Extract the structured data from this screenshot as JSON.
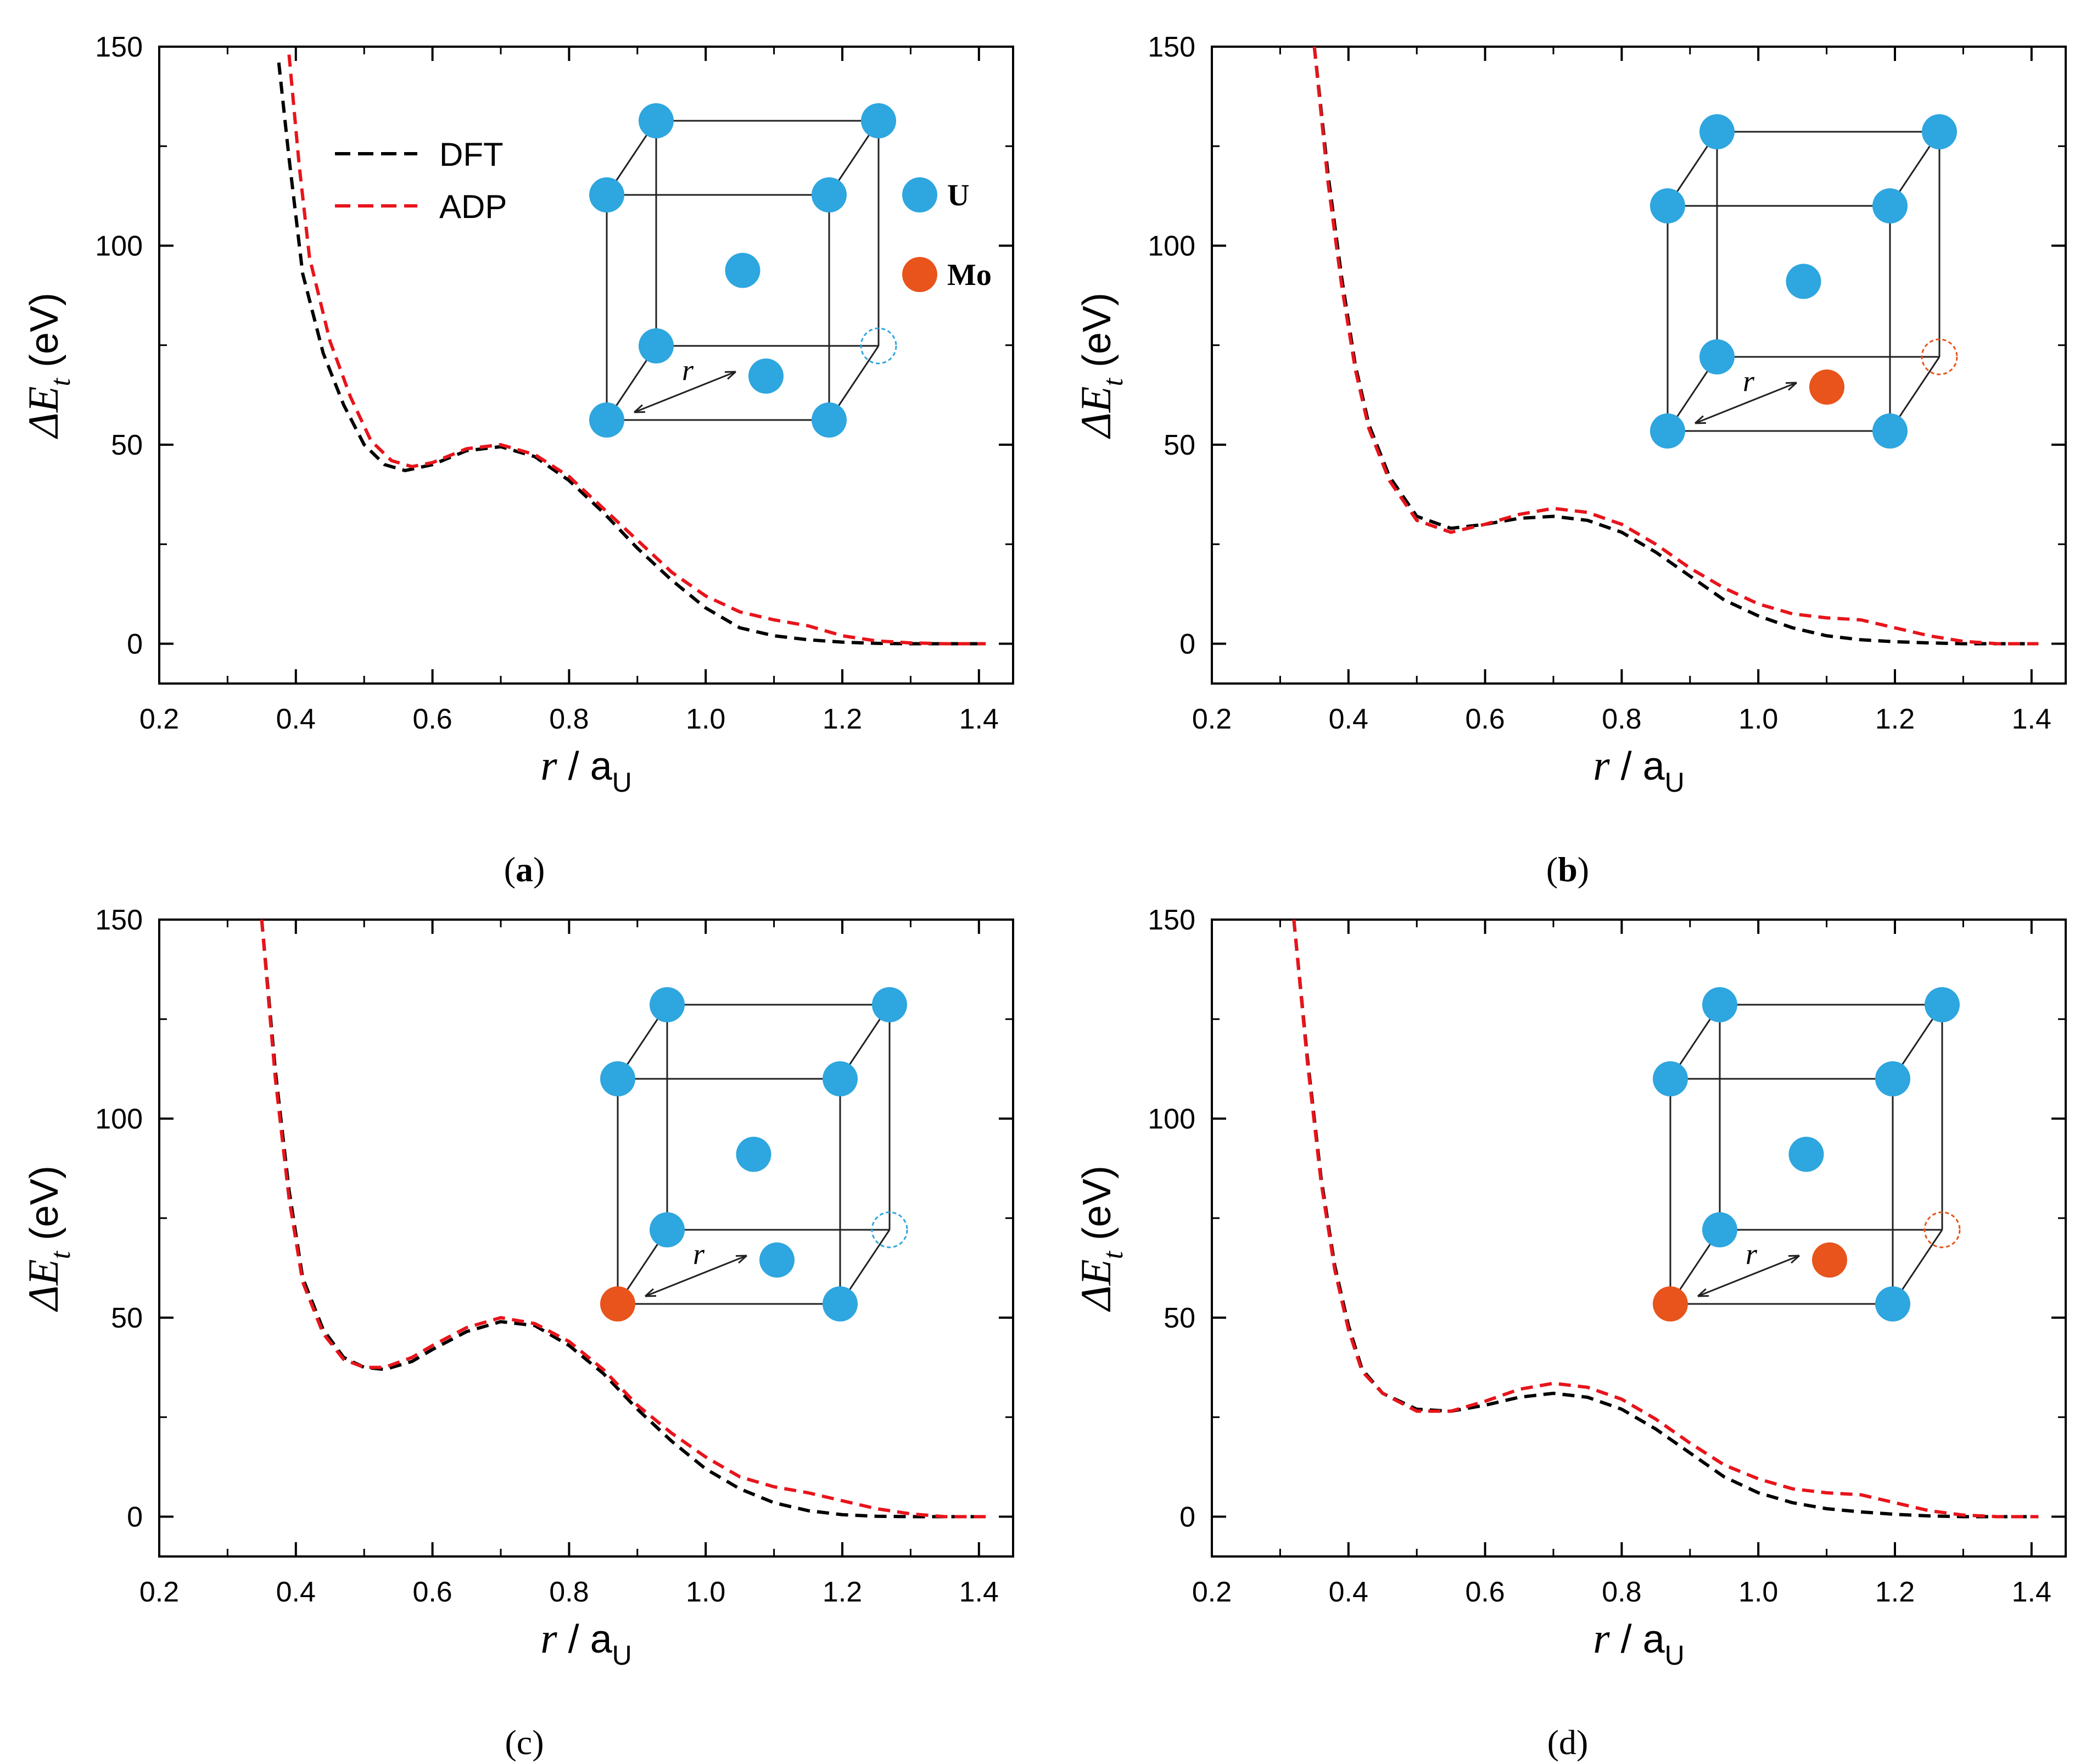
{
  "colors": {
    "U": "#2ea6df",
    "Mo": "#e8541b",
    "dft": "#000000",
    "adp": "#e8141b"
  },
  "legend": {
    "dft_label": "DFT",
    "adp_label": "ADP"
  },
  "atom_legend": {
    "u_label": "U",
    "mo_label": "Mo"
  },
  "inset_r_label": "r",
  "axes": {
    "x_title_var": "r",
    "x_title_sep": " / a",
    "x_title_sub": "U",
    "y_title_prefix": "ΔE",
    "y_title_sub": "t",
    "y_title_unit": " (eV)"
  },
  "chart_data": [
    {
      "type": "line",
      "panel": "a",
      "panel_label": "a",
      "inset": {
        "corner_atom": "U",
        "moving_atom": "U"
      },
      "xlim": [
        0.2,
        1.45
      ],
      "ylim": [
        -10,
        150
      ],
      "xticks": [
        "0.2",
        "0.4",
        "0.6",
        "0.8",
        "1.0",
        "1.2",
        "1.4"
      ],
      "yticks": [
        "0",
        "50",
        "100",
        "150"
      ],
      "series": [
        {
          "name": "DFT",
          "style": "dashed",
          "x": [
            0.375,
            0.39,
            0.41,
            0.44,
            0.47,
            0.5,
            0.53,
            0.56,
            0.6,
            0.65,
            0.7,
            0.75,
            0.8,
            0.85,
            0.9,
            0.95,
            1.0,
            1.05,
            1.1,
            1.15,
            1.2,
            1.25,
            1.3,
            1.35,
            1.41
          ],
          "y": [
            146,
            122,
            93,
            73,
            60,
            50,
            45,
            43.5,
            45,
            48.5,
            49.5,
            47,
            41,
            33,
            24,
            16,
            9,
            4,
            2,
            1,
            0.4,
            0.1,
            0,
            0,
            0
          ]
        },
        {
          "name": "ADP",
          "style": "dashed",
          "x": [
            0.39,
            0.405,
            0.42,
            0.45,
            0.48,
            0.51,
            0.54,
            0.57,
            0.6,
            0.65,
            0.7,
            0.75,
            0.8,
            0.85,
            0.9,
            0.95,
            1.0,
            1.05,
            1.1,
            1.15,
            1.2,
            1.25,
            1.3,
            1.35,
            1.41
          ],
          "y": [
            148,
            120,
            97,
            76,
            62,
            51,
            46,
            44.5,
            45.5,
            49,
            50,
            47.5,
            42,
            34,
            26,
            18,
            12,
            8,
            6,
            4.5,
            2,
            0.7,
            0.2,
            0,
            0
          ]
        }
      ]
    },
    {
      "type": "line",
      "panel": "b",
      "panel_label": "b",
      "inset": {
        "corner_atom": "U",
        "moving_atom": "Mo"
      },
      "xlim": [
        0.2,
        1.45
      ],
      "ylim": [
        -10,
        150
      ],
      "xticks": [
        "0.2",
        "0.4",
        "0.6",
        "0.8",
        "1.0",
        "1.2",
        "1.4"
      ],
      "yticks": [
        "0",
        "50",
        "100",
        "150"
      ],
      "series": [
        {
          "name": "DFT",
          "style": "dashed",
          "x": [
            0.35,
            0.37,
            0.39,
            0.41,
            0.43,
            0.46,
            0.5,
            0.55,
            0.6,
            0.65,
            0.7,
            0.75,
            0.8,
            0.85,
            0.9,
            0.95,
            1.0,
            1.05,
            1.1,
            1.15,
            1.2,
            1.25,
            1.3,
            1.35,
            1.41
          ],
          "y": [
            150,
            118,
            92,
            70,
            55,
            42,
            32,
            29,
            30,
            31.5,
            32,
            31,
            28,
            23,
            17,
            11,
            7,
            4,
            2,
            1,
            0.5,
            0.2,
            0,
            0,
            0
          ]
        },
        {
          "name": "ADP",
          "style": "dashed",
          "x": [
            0.35,
            0.37,
            0.39,
            0.41,
            0.43,
            0.46,
            0.5,
            0.55,
            0.6,
            0.65,
            0.7,
            0.75,
            0.8,
            0.85,
            0.9,
            0.95,
            1.0,
            1.05,
            1.1,
            1.15,
            1.2,
            1.25,
            1.3,
            1.35,
            1.41
          ],
          "y": [
            150,
            116,
            90,
            69,
            54,
            41,
            31,
            28,
            30,
            32.5,
            34,
            33,
            30,
            25,
            19,
            14,
            10,
            7.5,
            6.5,
            6,
            4,
            2,
            0.6,
            0,
            0
          ]
        }
      ]
    },
    {
      "type": "line",
      "panel": "c",
      "panel_label": "c",
      "inset": {
        "corner_atom": "Mo",
        "moving_atom": "U"
      },
      "xlim": [
        0.2,
        1.45
      ],
      "ylim": [
        -10,
        150
      ],
      "xticks": [
        "0.2",
        "0.4",
        "0.6",
        "0.8",
        "1.0",
        "1.2",
        "1.4"
      ],
      "yticks": [
        "0",
        "50",
        "100",
        "150"
      ],
      "series": [
        {
          "name": "DFT",
          "style": "dashed",
          "x": [
            0.35,
            0.37,
            0.39,
            0.41,
            0.44,
            0.47,
            0.5,
            0.53,
            0.57,
            0.6,
            0.65,
            0.7,
            0.75,
            0.8,
            0.85,
            0.9,
            0.95,
            1.0,
            1.05,
            1.1,
            1.15,
            1.2,
            1.25,
            1.3,
            1.35,
            1.41
          ],
          "y": [
            150,
            112,
            82,
            60,
            47,
            40,
            37.5,
            37,
            39,
            42,
            46.5,
            49,
            48,
            43,
            36,
            27,
            19,
            12,
            7,
            3.5,
            1.5,
            0.5,
            0.1,
            0,
            0,
            0
          ]
        },
        {
          "name": "ADP",
          "style": "dashed",
          "x": [
            0.35,
            0.37,
            0.39,
            0.41,
            0.44,
            0.47,
            0.5,
            0.53,
            0.57,
            0.6,
            0.65,
            0.7,
            0.75,
            0.8,
            0.85,
            0.9,
            0.95,
            1.0,
            1.05,
            1.1,
            1.15,
            1.2,
            1.25,
            1.3,
            1.35,
            1.41
          ],
          "y": [
            150,
            110,
            80,
            59,
            46,
            39.5,
            37.5,
            37.5,
            40,
            43,
            47.5,
            50,
            48.5,
            44,
            37,
            28,
            21,
            15,
            10,
            7.5,
            6,
            4,
            2,
            0.7,
            0,
            0
          ]
        }
      ]
    },
    {
      "type": "line",
      "panel": "d",
      "panel_label": "d",
      "inset": {
        "corner_atom": "Mo",
        "moving_atom": "Mo"
      },
      "xlim": [
        0.2,
        1.45
      ],
      "ylim": [
        -10,
        150
      ],
      "xticks": [
        "0.2",
        "0.4",
        "0.6",
        "0.8",
        "1.0",
        "1.2",
        "1.4"
      ],
      "yticks": [
        "0",
        "50",
        "100",
        "150"
      ],
      "series": [
        {
          "name": "DFT",
          "style": "dashed",
          "x": [
            0.32,
            0.34,
            0.36,
            0.38,
            0.4,
            0.42,
            0.45,
            0.5,
            0.55,
            0.6,
            0.65,
            0.7,
            0.75,
            0.8,
            0.85,
            0.9,
            0.95,
            1.0,
            1.05,
            1.1,
            1.15,
            1.2,
            1.25,
            1.3,
            1.35,
            1.41
          ],
          "y": [
            150,
            115,
            85,
            63,
            48,
            37,
            31,
            27,
            26.5,
            28,
            30,
            31,
            30,
            27,
            22,
            16,
            10,
            6,
            3.5,
            2,
            1.2,
            0.6,
            0.2,
            0,
            0,
            0
          ]
        },
        {
          "name": "ADP",
          "style": "dashed",
          "x": [
            0.32,
            0.34,
            0.36,
            0.38,
            0.4,
            0.42,
            0.45,
            0.5,
            0.55,
            0.6,
            0.65,
            0.7,
            0.75,
            0.8,
            0.85,
            0.9,
            0.95,
            1.0,
            1.05,
            1.1,
            1.15,
            1.2,
            1.25,
            1.3,
            1.35,
            1.41
          ],
          "y": [
            150,
            114,
            84,
            62,
            47,
            36.5,
            31,
            26.5,
            26.5,
            29,
            32,
            33.5,
            32.5,
            29.5,
            24.5,
            18.5,
            13,
            9.5,
            7,
            6,
            5.5,
            3.5,
            1.5,
            0.4,
            0,
            0
          ]
        }
      ]
    }
  ]
}
